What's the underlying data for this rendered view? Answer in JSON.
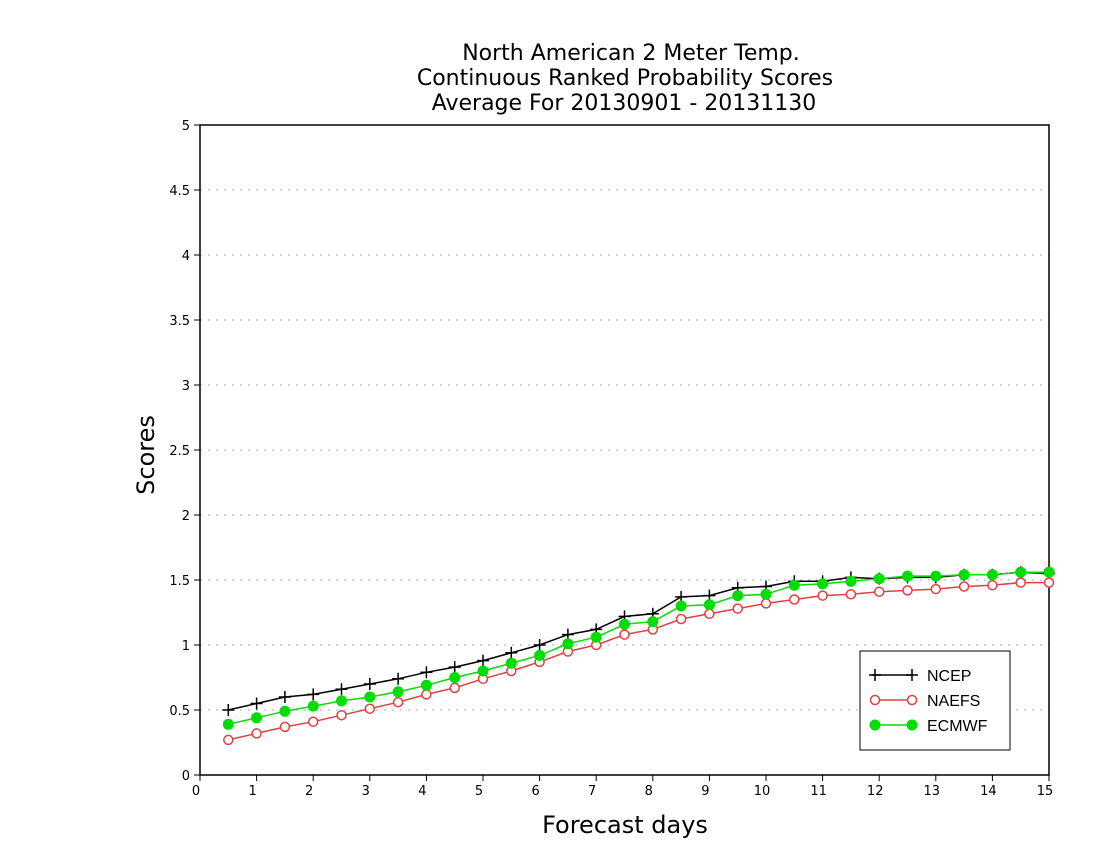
{
  "chart_data": {
    "type": "line",
    "title": [
      "North American 2 Meter Temp.",
      "Continuous Ranked Probability Scores",
      "Average For 20130901 - 20131130"
    ],
    "xlabel": "Forecast days",
    "ylabel": "Scores",
    "xlim": [
      0,
      15
    ],
    "ylim": [
      0,
      5
    ],
    "xticks": [
      "0",
      "1",
      "2",
      "3",
      "4",
      "5",
      "6",
      "7",
      "8",
      "9",
      "10",
      "11",
      "12",
      "13",
      "14",
      "15"
    ],
    "yticks": [
      "0",
      "0.5",
      "1",
      "1.5",
      "2",
      "2.5",
      "3",
      "3.5",
      "4",
      "4.5",
      "5"
    ],
    "grid": "horizontal dotted",
    "legend_position": "bottom-right",
    "x": [
      0.5,
      1,
      1.5,
      2,
      2.5,
      3,
      3.5,
      4,
      4.5,
      5,
      5.5,
      6,
      6.5,
      7,
      7.5,
      8,
      8.5,
      9,
      9.5,
      10,
      10.5,
      11,
      11.5,
      12,
      12.5,
      13,
      13.5,
      14,
      14.5,
      15
    ],
    "series": [
      {
        "name": "NCEP",
        "color": "#000000",
        "marker": "plus",
        "values": [
          0.5,
          0.55,
          0.6,
          0.62,
          0.66,
          0.7,
          0.74,
          0.79,
          0.83,
          0.88,
          0.94,
          1.0,
          1.08,
          1.12,
          1.22,
          1.24,
          1.37,
          1.38,
          1.44,
          1.45,
          1.49,
          1.49,
          1.52,
          1.51,
          1.52,
          1.52,
          1.54,
          1.54,
          1.56,
          1.55
        ]
      },
      {
        "name": "NAEFS",
        "color": "#e04040",
        "marker": "open-circle",
        "values": [
          0.27,
          0.32,
          0.37,
          0.41,
          0.46,
          0.51,
          0.56,
          0.62,
          0.67,
          0.74,
          0.8,
          0.87,
          0.95,
          1.0,
          1.08,
          1.12,
          1.2,
          1.24,
          1.28,
          1.32,
          1.35,
          1.38,
          1.39,
          1.41,
          1.42,
          1.43,
          1.45,
          1.46,
          1.48,
          1.48
        ]
      },
      {
        "name": "ECMWF",
        "color": "#00dd00",
        "marker": "filled-circle",
        "values": [
          0.39,
          0.44,
          0.49,
          0.53,
          0.57,
          0.6,
          0.64,
          0.69,
          0.75,
          0.8,
          0.86,
          0.92,
          1.01,
          1.06,
          1.16,
          1.18,
          1.3,
          1.31,
          1.38,
          1.39,
          1.46,
          1.47,
          1.49,
          1.51,
          1.53,
          1.53,
          1.54,
          1.54,
          1.56,
          1.56
        ]
      }
    ]
  }
}
